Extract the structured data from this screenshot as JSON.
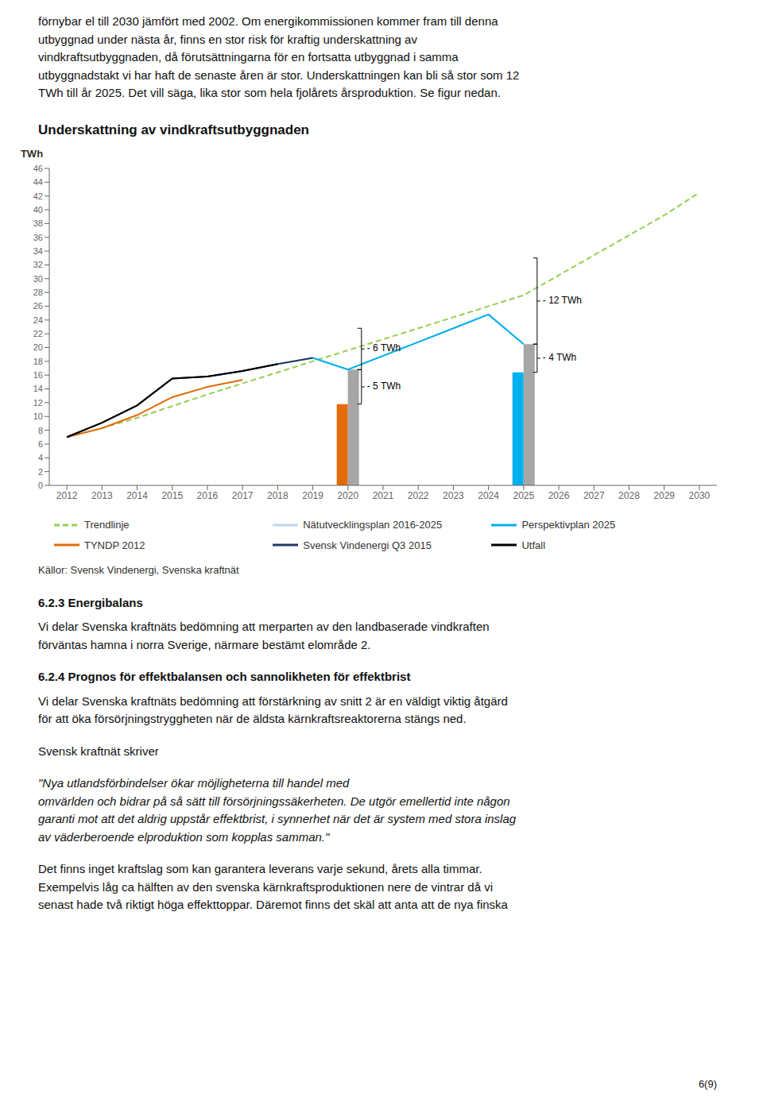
{
  "chart_data": {
    "type": "line",
    "title": "Underskattning av vindkraftsutbyggnaden",
    "ylabel": "TWh",
    "source": "Källor: Svensk Vindenergi, Svenska kraftnät",
    "xlim": [
      2011.5,
      2030.5
    ],
    "xticks": [
      2012,
      2013,
      2014,
      2015,
      2016,
      2017,
      2018,
      2019,
      2020,
      2021,
      2022,
      2023,
      2024,
      2025,
      2026,
      2027,
      2028,
      2029,
      2030
    ],
    "ylim": [
      0,
      46
    ],
    "yticks": [
      0,
      2,
      4,
      6,
      8,
      10,
      12,
      14,
      16,
      18,
      20,
      22,
      24,
      26,
      28,
      30,
      32,
      34,
      36,
      38,
      40,
      42,
      44,
      46
    ],
    "grid": false,
    "legend": "bottom",
    "series": [
      {
        "name": "Trendlinje",
        "type": "line",
        "color": "#92D050",
        "line_style": "dashed",
        "x": [
          2012,
          2013,
          2014,
          2015,
          2016,
          2017,
          2018,
          2019,
          2020,
          2021,
          2022,
          2023,
          2024,
          2025,
          2026,
          2027,
          2028,
          2029,
          2030
        ],
        "values": [
          7.0,
          8.3,
          9.8,
          11.5,
          13.2,
          14.8,
          16.4,
          18.0,
          19.6,
          21.2,
          22.8,
          24.4,
          26.0,
          27.6,
          30.5,
          33.4,
          36.3,
          39.2,
          42.5
        ]
      },
      {
        "name": "Nätutvecklingsplan 2016-2025",
        "type": "line",
        "color": "#BDD7EE",
        "line_style": "solid",
        "x": [
          2016,
          2017,
          2018,
          2019,
          2020,
          2021,
          2022,
          2023,
          2024,
          2025
        ],
        "values": [
          15.8,
          16.6,
          17.6,
          18.5,
          16.8,
          18.8,
          20.8,
          22.8,
          24.8,
          20.5
        ]
      },
      {
        "name": "Perspektivplan 2025",
        "type": "line",
        "color": "#00B0F0",
        "line_style": "solid",
        "x": [
          2019,
          2020,
          2021,
          2022,
          2023,
          2024,
          2025
        ],
        "values": [
          18.5,
          16.8,
          18.8,
          20.8,
          22.8,
          24.8,
          20.5
        ]
      },
      {
        "name": "TYNDP 2012",
        "type": "line",
        "color": "#E36C09",
        "line_style": "solid",
        "x": [
          2012,
          2013,
          2014,
          2015,
          2016,
          2017
        ],
        "values": [
          7.0,
          8.3,
          10.2,
          12.8,
          14.3,
          15.3
        ]
      },
      {
        "name": "Svensk Vindenergi Q3 2015",
        "type": "line",
        "color": "#1F3864",
        "line_style": "solid",
        "x": [
          2012,
          2013,
          2014,
          2015,
          2016,
          2017,
          2018,
          2019
        ],
        "values": [
          7.0,
          9.1,
          11.6,
          15.5,
          15.8,
          16.6,
          17.6,
          18.5
        ]
      },
      {
        "name": "Utfall",
        "type": "line",
        "color": "#000000",
        "line_style": "solid",
        "x": [
          2012,
          2013,
          2014,
          2015,
          2016,
          2017,
          2018
        ],
        "values": [
          7.0,
          9.1,
          11.6,
          15.5,
          15.8,
          16.6,
          17.6
        ]
      },
      {
        "type": "bar",
        "colors": [
          "#E36C09",
          "#00B0F0"
        ],
        "x": [
          2020,
          2025
        ],
        "values": [
          11.8,
          16.4
        ]
      },
      {
        "type": "bar",
        "color": "#A6A6A6",
        "x": [
          2020,
          2025
        ],
        "values": [
          16.8,
          20.5
        ]
      }
    ],
    "annotations": [
      {
        "x": 2020,
        "y1": 11.8,
        "y2": 16.8,
        "label": "- 5 TWh"
      },
      {
        "x": 2020,
        "y1": 16.8,
        "y2": 22.8,
        "label": "- 6 TWh"
      },
      {
        "x": 2025,
        "y1": 16.4,
        "y2": 20.5,
        "label": "- 4 TWh"
      },
      {
        "x": 2025,
        "y1": 20.5,
        "y2": 33.0,
        "label": "- 12 TWh"
      }
    ]
  },
  "page_text": {
    "upper": "förnybar el till 2030 jämfört med 2002. Om energikommissionen kommer fram till denna\nutbyggnad under nästa år, finns en stor risk för kraftig underskattning av\nvindkraftsutbyggnaden, då förutsättningarna för en fortsatta utbyggnad i samma\nutbyggnadstakt vi har haft de senaste åren är stor. Underskattningen kan bli så stor som 12\nTWh till år 2025. Det vill säga, lika stor som hela fjolårets årsproduktion. Se figur nedan.",
    "lower": [
      {
        "text": "6.2.3 Energibalans",
        "style": "bold"
      },
      {
        "text": "Vi delar Svenska kraftnäts bedömning att merparten av den landbaserade vindkraften\nförväntas hamna i norra Sverige, närmare bestämt elområde 2."
      },
      {
        "text": "6.2.4 Prognos för effektbalansen och sannolikheten för effektbrist",
        "style": "bold"
      },
      {
        "text": "Vi delar Svenska kraftnäts bedömning att förstärkning av snitt 2 är en väldigt viktig åtgärd\nför att öka försörjningstryggheten när de äldsta kärnkraftsreaktorerna stängs ned."
      },
      {
        "text": "Svensk kraftnät skriver "
      },
      {
        "text": "\"Nya utlandsförbindelser ökar möjligheterna till handel med\nomvärlden och bidrar på så sätt till försörjningssäkerheten. De utgör emellertid inte någon\ngaranti mot att det aldrig uppstår effektbrist, i synnerhet när det är system med stora inslag\nav väderberoende elproduktion som kopplas samman.\"",
        "style": "italic"
      },
      {
        "text": "Det finns inget kraftslag som kan garantera leverans varje sekund, årets alla timmar.\nExempelvis låg ca hälften av den svenska kärnkraftsproduktionen nere de vintrar då vi\nsenast hade två riktigt höga effekttoppar. Däremot finns det skäl att anta att de nya finska"
      }
    ],
    "page_number": "6(9)"
  }
}
